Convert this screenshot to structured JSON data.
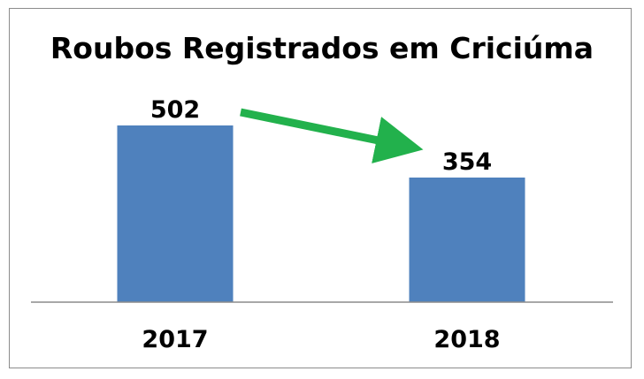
{
  "chart_data": {
    "type": "bar",
    "title": "Roubos Registrados em Criciúma",
    "categories": [
      "2017",
      "2018"
    ],
    "values": [
      502,
      354
    ],
    "ylim": [
      0,
      502
    ],
    "grid": false,
    "legend": "none",
    "bar_color": "#4f81bd",
    "arrow_color": "#22b14c",
    "annotation": {
      "type": "arrow",
      "from": "2017",
      "to": "2018",
      "direction": "down"
    }
  }
}
